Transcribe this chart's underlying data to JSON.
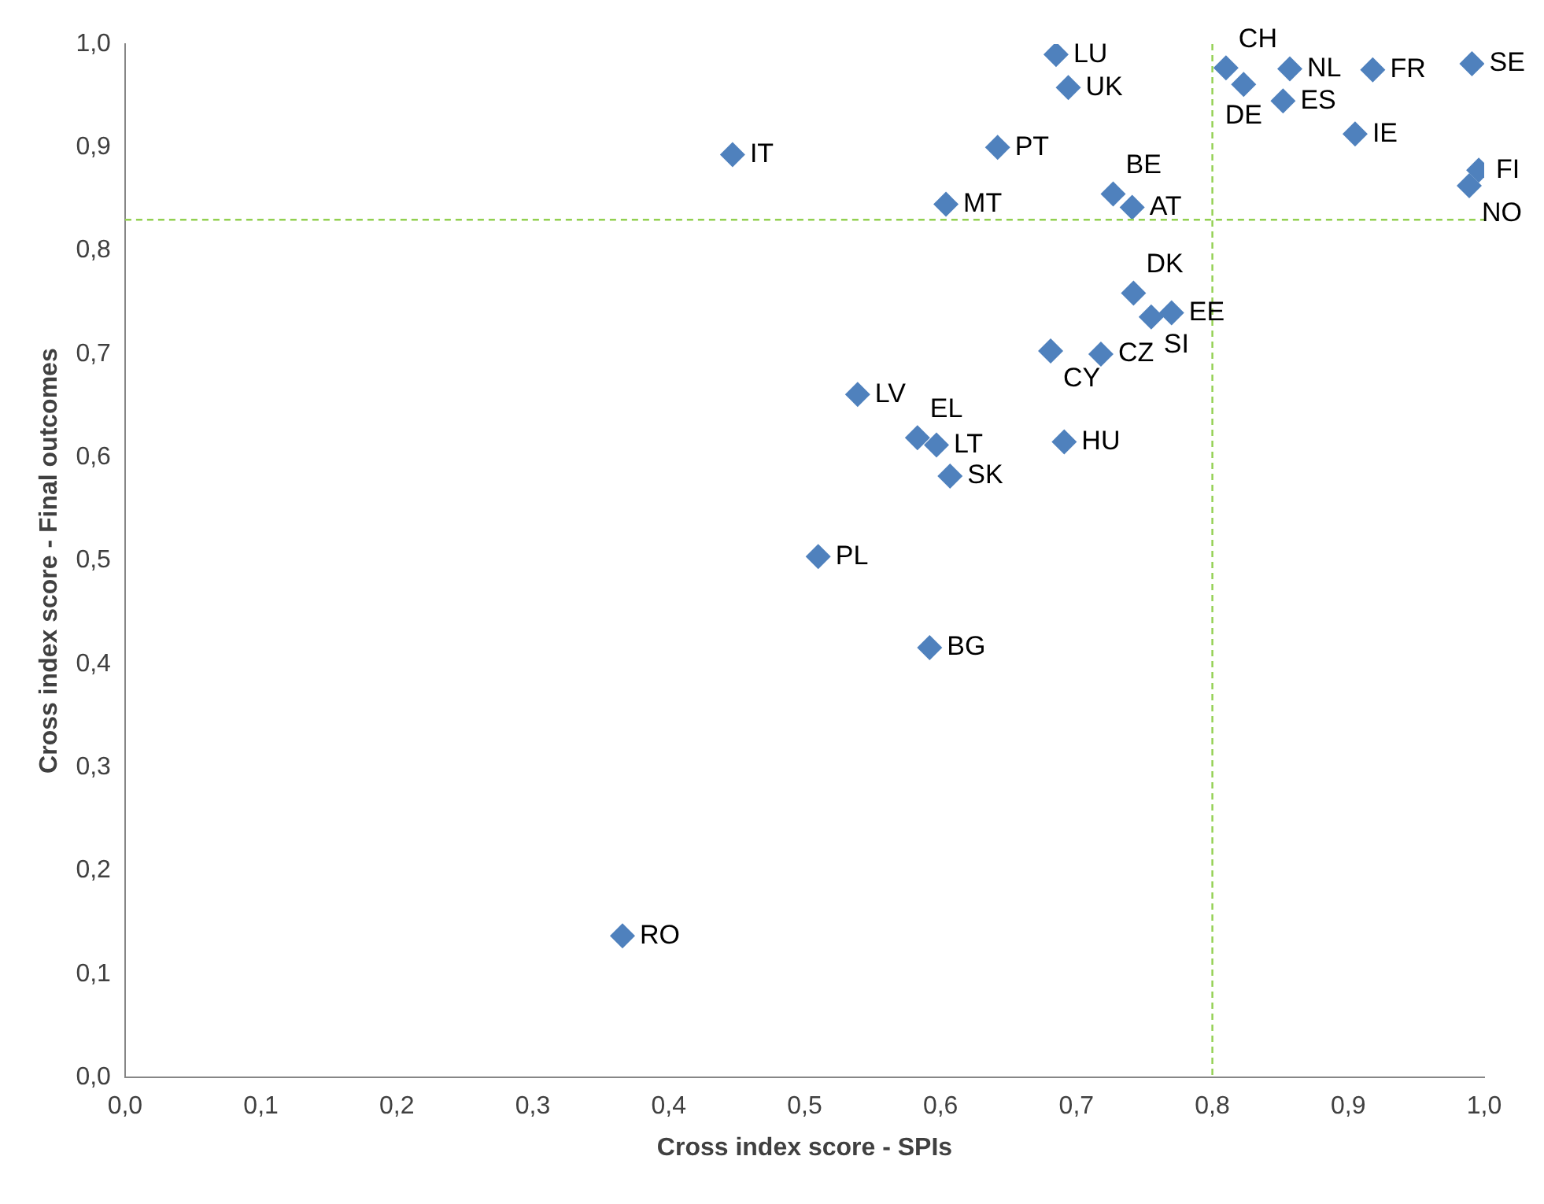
{
  "chart_data": {
    "type": "scatter",
    "xlabel": "Cross index score - SPIs",
    "ylabel": "Cross index score - Final outcomes",
    "marker": "diamond",
    "grid": false,
    "legend": false,
    "xlim": [
      0,
      1
    ],
    "ylim": [
      0,
      1
    ],
    "xticks": [
      {
        "value": 0,
        "label": "0,0"
      },
      {
        "value": 0.1,
        "label": "0,1"
      },
      {
        "value": 0.2,
        "label": "0,2"
      },
      {
        "value": 0.3,
        "label": "0,3"
      },
      {
        "value": 0.4,
        "label": "0,4"
      },
      {
        "value": 0.5,
        "label": "0,5"
      },
      {
        "value": 0.6,
        "label": "0,6"
      },
      {
        "value": 0.7,
        "label": "0,7"
      },
      {
        "value": 0.8,
        "label": "0,8"
      },
      {
        "value": 0.9,
        "label": "0,9"
      },
      {
        "value": 1,
        "label": "1,0"
      }
    ],
    "yticks": [
      {
        "value": 0,
        "label": "0,0"
      },
      {
        "value": 0.1,
        "label": "0,1"
      },
      {
        "value": 0.2,
        "label": "0,2"
      },
      {
        "value": 0.3,
        "label": "0,3"
      },
      {
        "value": 0.4,
        "label": "0,4"
      },
      {
        "value": 0.5,
        "label": "0,5"
      },
      {
        "value": 0.6,
        "label": "0,6"
      },
      {
        "value": 0.7,
        "label": "0,7"
      },
      {
        "value": 0.8,
        "label": "0,8"
      },
      {
        "value": 0.9,
        "label": "0,9"
      },
      {
        "value": 1,
        "label": "1,0"
      }
    ],
    "series": [
      {
        "color": "#4f81bd",
        "x": [
          0.685,
          0.694,
          0.81,
          0.823,
          0.857,
          0.852,
          0.918,
          0.991,
          0.905,
          0.996,
          0.989,
          0.447,
          0.642,
          0.604,
          0.727,
          0.741,
          0.742,
          0.755,
          0.77,
          0.681,
          0.718,
          0.539,
          0.583,
          0.597,
          0.607,
          0.691,
          0.51,
          0.592,
          0.366
        ],
        "values": [
          0.99,
          0.958,
          0.977,
          0.961,
          0.976,
          0.945,
          0.975,
          0.981,
          0.913,
          0.878,
          0.863,
          0.893,
          0.9,
          0.845,
          0.855,
          0.842,
          0.759,
          0.736,
          0.74,
          0.703,
          0.7,
          0.661,
          0.619,
          0.612,
          0.582,
          0.615,
          0.504,
          0.416,
          0.137
        ]
      }
    ],
    "ref_lines": [
      {
        "axis": "x",
        "value": 0.8,
        "color": "#92d050",
        "line_style": "dashed"
      },
      {
        "axis": "y",
        "value": 0.83,
        "color": "#92d050",
        "line_style": "dashed"
      }
    ],
    "annotations": [
      {
        "text": "LU",
        "x": 0.685,
        "y": 0.99
      },
      {
        "text": "UK",
        "x": 0.694,
        "y": 0.958
      },
      {
        "text": "CH",
        "x": 0.81,
        "y": 0.977
      },
      {
        "text": "DE",
        "x": 0.823,
        "y": 0.961
      },
      {
        "text": "NL",
        "x": 0.857,
        "y": 0.976
      },
      {
        "text": "ES",
        "x": 0.852,
        "y": 0.945
      },
      {
        "text": "FR",
        "x": 0.918,
        "y": 0.975
      },
      {
        "text": "SE",
        "x": 0.991,
        "y": 0.981
      },
      {
        "text": "IE",
        "x": 0.905,
        "y": 0.913
      },
      {
        "text": "FI",
        "x": 0.996,
        "y": 0.878
      },
      {
        "text": "NO",
        "x": 0.989,
        "y": 0.863
      },
      {
        "text": "IT",
        "x": 0.447,
        "y": 0.893
      },
      {
        "text": "PT",
        "x": 0.642,
        "y": 0.9
      },
      {
        "text": "MT",
        "x": 0.604,
        "y": 0.845
      },
      {
        "text": "BE",
        "x": 0.727,
        "y": 0.855
      },
      {
        "text": "AT",
        "x": 0.741,
        "y": 0.842
      },
      {
        "text": "DK",
        "x": 0.742,
        "y": 0.759
      },
      {
        "text": "SI",
        "x": 0.755,
        "y": 0.736
      },
      {
        "text": "EE",
        "x": 0.77,
        "y": 0.74
      },
      {
        "text": "CY",
        "x": 0.681,
        "y": 0.703
      },
      {
        "text": "CZ",
        "x": 0.718,
        "y": 0.7
      },
      {
        "text": "LV",
        "x": 0.539,
        "y": 0.661
      },
      {
        "text": "EL",
        "x": 0.583,
        "y": 0.619
      },
      {
        "text": "LT",
        "x": 0.597,
        "y": 0.612
      },
      {
        "text": "SK",
        "x": 0.607,
        "y": 0.582
      },
      {
        "text": "HU",
        "x": 0.691,
        "y": 0.615
      },
      {
        "text": "PL",
        "x": 0.51,
        "y": 0.504
      },
      {
        "text": "BG",
        "x": 0.592,
        "y": 0.416
      },
      {
        "text": "RO",
        "x": 0.366,
        "y": 0.137
      }
    ]
  }
}
